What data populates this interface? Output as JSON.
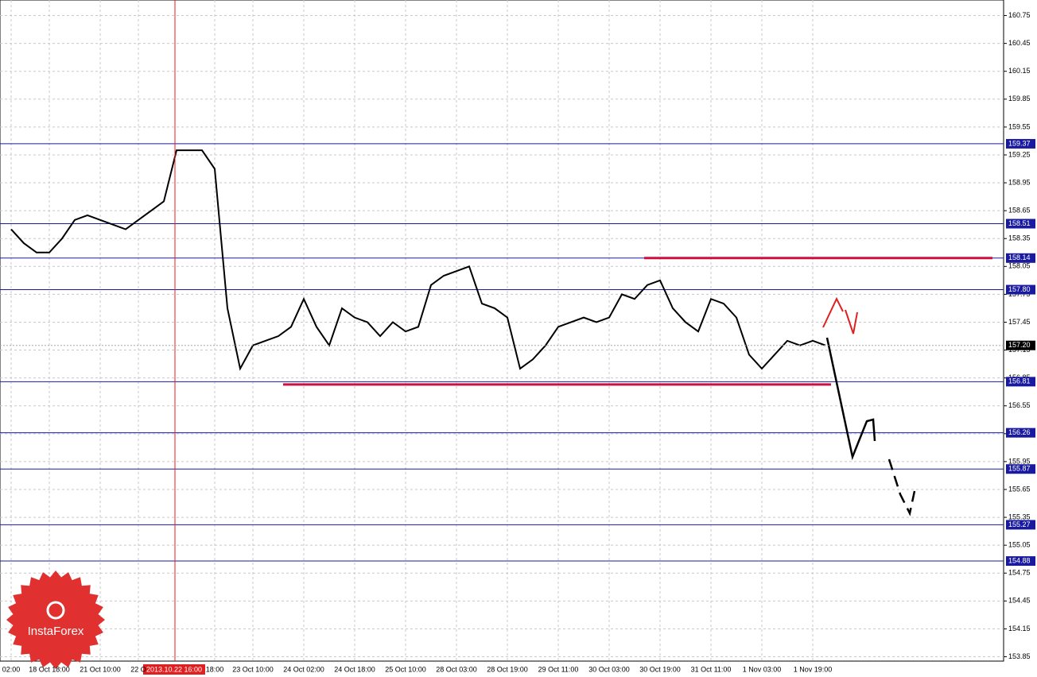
{
  "chart_data": {
    "type": "line",
    "categories": [
      "02:00",
      null,
      null,
      "18 Oct 18:00",
      null,
      null,
      null,
      "21 Oct 10:00",
      null,
      null,
      "22 O",
      null,
      null,
      null,
      null,
      null,
      "18:00",
      null,
      null,
      "23 Oct 10:00",
      null,
      null,
      null,
      "24 Oct 02:00",
      null,
      null,
      null,
      "24 Oct 18:00",
      null,
      null,
      null,
      "25 Oct 10:00",
      null,
      null,
      null,
      "28 Oct 03:00",
      null,
      null,
      null,
      "28 Oct 19:00",
      null,
      null,
      null,
      "29 Oct 11:00",
      null,
      null,
      null,
      "30 Oct 03:00",
      null,
      null,
      null,
      "30 Oct 19:00",
      null,
      null,
      null,
      "31 Oct 11:00",
      null,
      null,
      null,
      "1 Nov 03:00",
      null,
      null,
      null,
      "1 Nov 19:00",
      null
    ],
    "series": [
      {
        "color": "#000000",
        "values": [
          158.45,
          158.3,
          158.2,
          158.2,
          158.35,
          158.55,
          158.6,
          158.55,
          158.5,
          158.45,
          158.55,
          158.65,
          158.75,
          159.3,
          159.3,
          159.3,
          159.1,
          157.6,
          156.95,
          157.2,
          157.25,
          157.3,
          157.4,
          157.7,
          157.4,
          157.2,
          157.6,
          157.5,
          157.45,
          157.3,
          157.45,
          157.35,
          157.4,
          157.85,
          157.95,
          158.0,
          158.05,
          157.65,
          157.6,
          157.5,
          156.95,
          157.05,
          157.2,
          157.4,
          157.45,
          157.5,
          157.45,
          157.5,
          157.75,
          157.7,
          157.85,
          157.9,
          157.6,
          157.45,
          157.35,
          157.7,
          157.65,
          157.5,
          157.1,
          156.95,
          157.1,
          157.25,
          157.2,
          157.25,
          157.2
        ]
      }
    ],
    "ylim": [
      153.82,
      160.9
    ],
    "yticks": [
      160.75,
      160.45,
      160.15,
      159.85,
      159.55,
      159.25,
      158.95,
      158.65,
      158.35,
      158.05,
      157.75,
      157.45,
      157.15,
      156.85,
      156.55,
      156.25,
      155.95,
      155.65,
      155.35,
      155.05,
      154.75,
      154.45,
      154.15,
      153.85
    ],
    "grid": true,
    "levels": {
      "color": "#1a1aa0",
      "values": [
        159.37,
        158.51,
        158.14,
        {
          "value": 157.8,
          "label": "157.80"
        },
        156.81,
        156.26,
        155.87,
        155.27,
        154.88
      ]
    },
    "current_price": {
      "value": 157.2,
      "label": "157.20"
    },
    "support_resistance": {
      "color": "#cc1040",
      "values": [
        158.14,
        156.78
      ]
    },
    "crosshair_time": "2013.10.22 16:00",
    "logo": "InstaForex"
  }
}
